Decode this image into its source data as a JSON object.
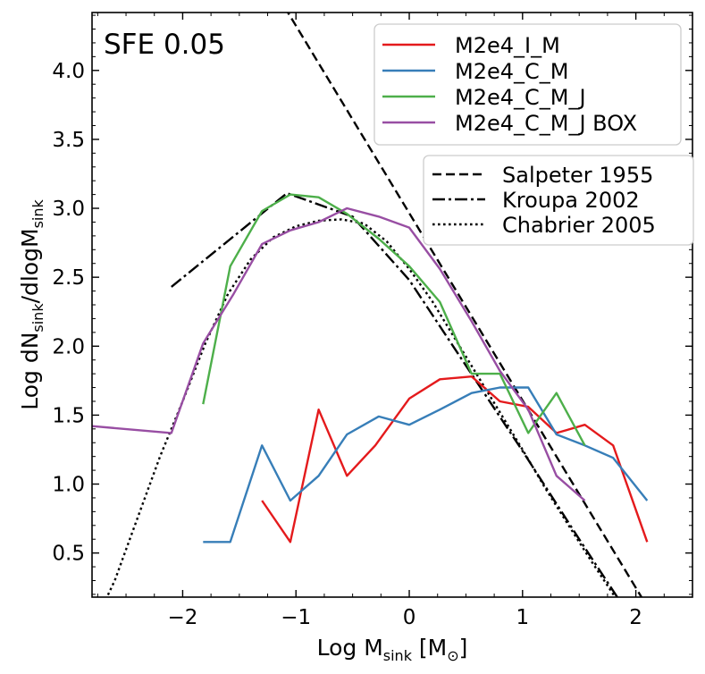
{
  "chart_data": {
    "type": "line",
    "annotation": "SFE 0.05",
    "xlabel": {
      "main": "Log M",
      "sub": "sink",
      "unit": " [M",
      "sym": "⊙",
      "close": "]"
    },
    "ylabel": {
      "a": "Log dN",
      "b": "sink",
      "c": "/dlogM",
      "d": "sink"
    },
    "xlim": [
      -2.8,
      2.5
    ],
    "ylim": [
      0.18,
      4.42
    ],
    "xticks": [
      -2,
      -1,
      0,
      1,
      2
    ],
    "xtick_labels": [
      "−2",
      "−1",
      "0",
      "1",
      "2"
    ],
    "yticks": [
      0.5,
      1.0,
      1.5,
      2.0,
      2.5,
      3.0,
      3.5,
      4.0
    ],
    "ytick_labels": [
      "0.5",
      "1.0",
      "1.5",
      "2.0",
      "2.5",
      "3.0",
      "3.5",
      "4.0"
    ],
    "legend_main": {
      "position": "top-right",
      "entries": [
        "M2e4_I_M",
        "M2e4_C_M",
        "M2e4_C_M_J",
        "M2e4_C_M_J BOX"
      ]
    },
    "legend_ref": {
      "position": "upper-right",
      "entries": [
        "Salpeter 1955",
        "Kroupa 2002",
        "Chabrier 2005"
      ]
    },
    "series": [
      {
        "name": "M2e4_I_M",
        "color": "#e41a1c",
        "x": [
          -1.3,
          -1.05,
          -0.8,
          -0.55,
          -0.3,
          0.0,
          0.27,
          0.55,
          0.8,
          1.05,
          1.3,
          1.55,
          1.8,
          2.1
        ],
        "y": [
          0.88,
          0.58,
          1.54,
          1.06,
          1.28,
          1.62,
          1.76,
          1.78,
          1.6,
          1.56,
          1.37,
          1.43,
          1.28,
          0.58
        ]
      },
      {
        "name": "M2e4_C_M",
        "color": "#377eb8",
        "x": [
          -1.82,
          -1.58,
          -1.3,
          -1.05,
          -0.8,
          -0.55,
          -0.27,
          0.0,
          0.27,
          0.55,
          0.8,
          1.05,
          1.3,
          1.55,
          1.8,
          2.1
        ],
        "y": [
          0.58,
          0.58,
          1.28,
          0.88,
          1.06,
          1.36,
          1.49,
          1.43,
          1.54,
          1.66,
          1.7,
          1.7,
          1.36,
          1.28,
          1.19,
          0.88
        ]
      },
      {
        "name": "M2e4_C_M_J",
        "color": "#4daf4a",
        "x": [
          -1.82,
          -1.58,
          -1.3,
          -1.05,
          -0.8,
          -0.55,
          -0.27,
          0.0,
          0.27,
          0.55,
          0.8,
          1.05,
          1.3,
          1.55
        ],
        "y": [
          1.58,
          2.58,
          2.98,
          3.1,
          3.08,
          2.96,
          2.78,
          2.58,
          2.32,
          1.8,
          1.8,
          1.37,
          1.66,
          1.28
        ]
      },
      {
        "name": "M2e4_C_M_J BOX",
        "color": "#984ea3",
        "x": [
          -2.8,
          -2.1,
          -1.82,
          -1.55,
          -1.3,
          -1.05,
          -0.8,
          -0.55,
          -0.27,
          0.0,
          0.27,
          0.55,
          0.8,
          1.05,
          1.3,
          1.55
        ],
        "y": [
          1.42,
          1.37,
          2.02,
          2.38,
          2.74,
          2.84,
          2.9,
          3.0,
          2.94,
          2.86,
          2.56,
          2.18,
          1.82,
          1.54,
          1.06,
          0.88
        ]
      }
    ],
    "reference_lines": [
      {
        "name": "Salpeter 1955",
        "style": "dashed",
        "color": "#000000",
        "x": [
          -1.1,
          2.05
        ],
        "y": [
          4.46,
          0.18
        ]
      },
      {
        "name": "Kroupa 2002",
        "style": "dashdot",
        "color": "#000000",
        "x": [
          -2.1,
          -1.08,
          -0.5,
          0.0,
          0.5,
          1.0,
          1.5,
          1.9
        ],
        "y": [
          2.43,
          3.11,
          2.94,
          2.48,
          1.86,
          1.24,
          0.6,
          0.1
        ]
      },
      {
        "name": "Chabrier 2005",
        "style": "dotted",
        "color": "#000000",
        "x": [
          -2.8,
          -2.6,
          -2.4,
          -2.2,
          -2.0,
          -1.8,
          -1.6,
          -1.4,
          -1.2,
          -1.0,
          -0.8,
          -0.6,
          -0.4,
          -0.2,
          0.0,
          0.2,
          0.4,
          0.6,
          0.8,
          1.0,
          1.2,
          1.4,
          1.6,
          1.85
        ],
        "y": [
          -0.05,
          0.3,
          0.75,
          1.2,
          1.6,
          2.02,
          2.38,
          2.63,
          2.79,
          2.87,
          2.91,
          2.92,
          2.89,
          2.76,
          2.56,
          2.33,
          2.06,
          1.79,
          1.52,
          1.25,
          0.97,
          0.71,
          0.45,
          0.14
        ]
      }
    ]
  }
}
